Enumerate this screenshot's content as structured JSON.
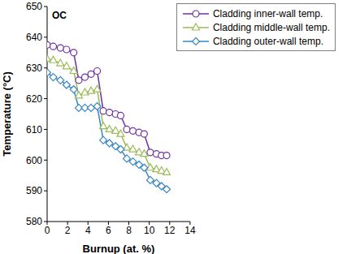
{
  "chart_data": {
    "type": "line",
    "annotation": "OC",
    "x_label": "Burnup (at. %)",
    "y_label": "Temperature (°C)",
    "x": [
      0,
      0.6,
      1.3,
      1.9,
      2.6,
      3.1,
      3.7,
      4.3,
      4.9,
      5.5,
      6.1,
      6.7,
      7.2,
      7.8,
      8.4,
      9.0,
      9.5,
      10.1,
      10.7,
      11.2,
      11.7
    ],
    "series": [
      {
        "name": "Cladding inner-wall temp.",
        "color": "#7030a0",
        "marker": "circle",
        "values": [
          637.5,
          637,
          636.5,
          636,
          635,
          626,
          627,
          628,
          629,
          616,
          615.5,
          615,
          614.5,
          610,
          609.5,
          609,
          608.5,
          602.5,
          602,
          601.5,
          601.5
        ]
      },
      {
        "name": "Cladding middle-wall temp.",
        "color": "#9bbb59",
        "marker": "triangle",
        "values": [
          633,
          632.5,
          631.5,
          630.5,
          629,
          621,
          622,
          622.5,
          623,
          611,
          610,
          609.5,
          608.5,
          604,
          603.5,
          602.5,
          602,
          597.5,
          597,
          596.5,
          596
        ]
      },
      {
        "name": "Cladding outer-wall temp.",
        "color": "#3a87c4",
        "marker": "diamond",
        "values": [
          628.5,
          627,
          626,
          624.5,
          623,
          617,
          617,
          617,
          617.5,
          606.5,
          605.5,
          604.5,
          603.5,
          600.5,
          599.5,
          598.5,
          597.5,
          593.5,
          592.5,
          591.5,
          590.5
        ]
      }
    ],
    "xlim": [
      0,
      14
    ],
    "xticks": [
      0,
      2,
      4,
      6,
      8,
      10,
      12,
      14
    ],
    "ylim": [
      580,
      650
    ],
    "yticks": [
      580,
      590,
      600,
      610,
      620,
      630,
      640,
      650
    ],
    "legend": "upper right"
  }
}
